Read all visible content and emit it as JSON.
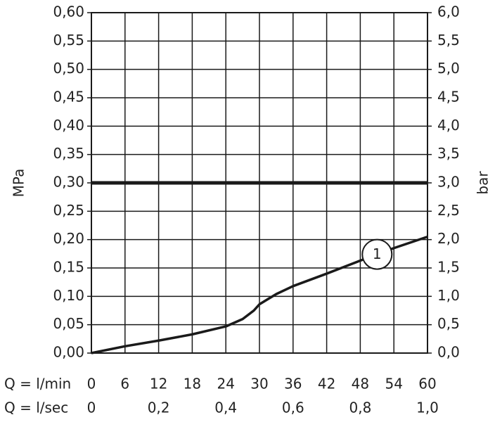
{
  "chart_data": {
    "type": "line",
    "ylabel": "MPa",
    "y2label": "bar",
    "xlabel": "Q = l/min",
    "x2label": "Q = l/sec",
    "xlim": [
      0,
      60
    ],
    "xticks": [
      0,
      6,
      12,
      18,
      24,
      30,
      36,
      42,
      48,
      54,
      60
    ],
    "x2lim": [
      0,
      1
    ],
    "x2ticks": [
      0,
      {
        "value": 0.2,
        "label": "0,2"
      },
      {
        "value": 0.4,
        "label": "0,4"
      },
      {
        "value": 0.6,
        "label": "0,6"
      },
      {
        "value": 0.8,
        "label": "0,8"
      },
      {
        "value": 1.0,
        "label": "1,0"
      }
    ],
    "ylim": [
      0,
      0.6
    ],
    "yticks": [
      {
        "value": 0,
        "label": "0,00"
      },
      {
        "value": 0.05,
        "label": "0,05"
      },
      {
        "value": 0.1,
        "label": "0,10"
      },
      {
        "value": 0.15,
        "label": "0,15"
      },
      {
        "value": 0.2,
        "label": "0,20"
      },
      {
        "value": 0.25,
        "label": "0,25"
      },
      {
        "value": 0.3,
        "label": "0,30"
      },
      {
        "value": 0.35,
        "label": "0,35"
      },
      {
        "value": 0.4,
        "label": "0,40"
      },
      {
        "value": 0.45,
        "label": "0,45"
      },
      {
        "value": 0.5,
        "label": "0,50"
      },
      {
        "value": 0.55,
        "label": "0,55"
      },
      {
        "value": 0.6,
        "label": "0,60"
      }
    ],
    "y2lim": [
      0,
      6
    ],
    "y2ticks": [
      {
        "value": 0,
        "label": "0,0"
      },
      {
        "value": 0.5,
        "label": "0,5"
      },
      {
        "value": 1,
        "label": "1,0"
      },
      {
        "value": 1.5,
        "label": "1,5"
      },
      {
        "value": 2,
        "label": "2,0"
      },
      {
        "value": 2.5,
        "label": "2,5"
      },
      {
        "value": 3,
        "label": "3,0"
      },
      {
        "value": 3.5,
        "label": "3,5"
      },
      {
        "value": 4,
        "label": "4,0"
      },
      {
        "value": 4.5,
        "label": "4,5"
      },
      {
        "value": 5,
        "label": "5,0"
      },
      {
        "value": 5.5,
        "label": "5,5"
      },
      {
        "value": 6,
        "label": "6,0"
      }
    ],
    "grid": true,
    "hline": {
      "value": 0.3,
      "color": "#1a1a1a"
    },
    "series": [
      {
        "label": "1",
        "color": "#1a1a1a",
        "x": [
          0,
          6,
          12,
          18,
          24,
          27,
          29,
          30,
          33,
          36,
          42,
          48,
          54,
          60
        ],
        "values": [
          0,
          0.012,
          0.022,
          0.033,
          0.047,
          0.06,
          0.075,
          0.086,
          0.104,
          0.118,
          0.14,
          0.163,
          0.185,
          0.205
        ]
      }
    ]
  }
}
